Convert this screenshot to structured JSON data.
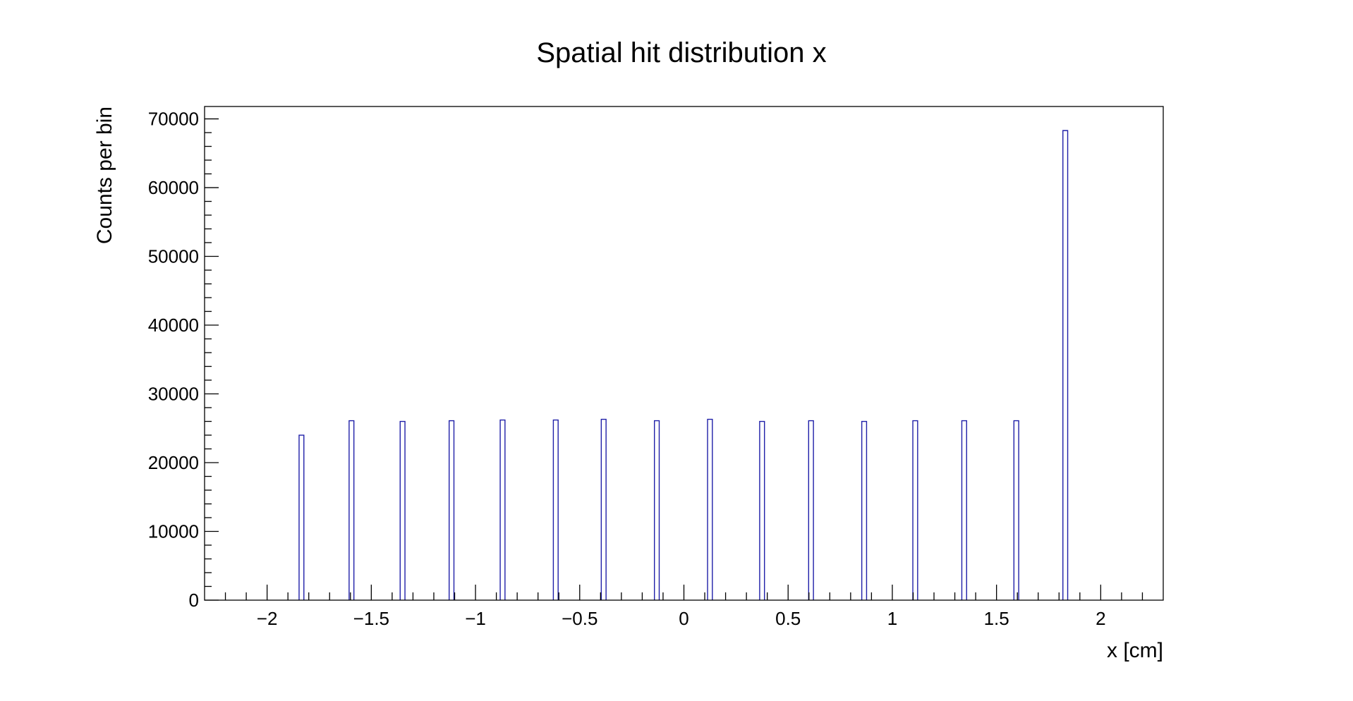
{
  "chart_data": {
    "type": "bar",
    "title": "Spatial hit distribution x",
    "xlabel": "x [cm]",
    "ylabel": "Counts per bin",
    "xlim": [
      -2.3,
      2.3
    ],
    "ylim": [
      0,
      71800
    ],
    "x_ticks": [
      {
        "value": -2,
        "label": "−2"
      },
      {
        "value": -1.5,
        "label": "−1.5"
      },
      {
        "value": -1,
        "label": "−1"
      },
      {
        "value": -0.5,
        "label": "−0.5"
      },
      {
        "value": 0,
        "label": "0"
      },
      {
        "value": 0.5,
        "label": "0.5"
      },
      {
        "value": 1,
        "label": "1"
      },
      {
        "value": 1.5,
        "label": "1.5"
      },
      {
        "value": 2,
        "label": "2"
      }
    ],
    "y_ticks": [
      {
        "value": 0,
        "label": "0"
      },
      {
        "value": 10000,
        "label": "10000"
      },
      {
        "value": 20000,
        "label": "20000"
      },
      {
        "value": 30000,
        "label": "30000"
      },
      {
        "value": 40000,
        "label": "40000"
      },
      {
        "value": 50000,
        "label": "50000"
      },
      {
        "value": 60000,
        "label": "60000"
      },
      {
        "value": 70000,
        "label": "70000"
      }
    ],
    "bin_width": 0.023,
    "bins": [
      {
        "x": -1.835,
        "count": 24000
      },
      {
        "x": -1.595,
        "count": 26100
      },
      {
        "x": -1.35,
        "count": 26000
      },
      {
        "x": -1.115,
        "count": 26100
      },
      {
        "x": -0.87,
        "count": 26200
      },
      {
        "x": -0.615,
        "count": 26200
      },
      {
        "x": -0.385,
        "count": 26300
      },
      {
        "x": -0.13,
        "count": 26100
      },
      {
        "x": 0.125,
        "count": 26300
      },
      {
        "x": 0.375,
        "count": 26000
      },
      {
        "x": 0.61,
        "count": 26100
      },
      {
        "x": 0.865,
        "count": 26000
      },
      {
        "x": 1.11,
        "count": 26100
      },
      {
        "x": 1.345,
        "count": 26100
      },
      {
        "x": 1.595,
        "count": 26100
      },
      {
        "x": 1.83,
        "count": 68300
      }
    ],
    "bar_color": "#1f1fa8",
    "grid": false,
    "legend": "none"
  }
}
